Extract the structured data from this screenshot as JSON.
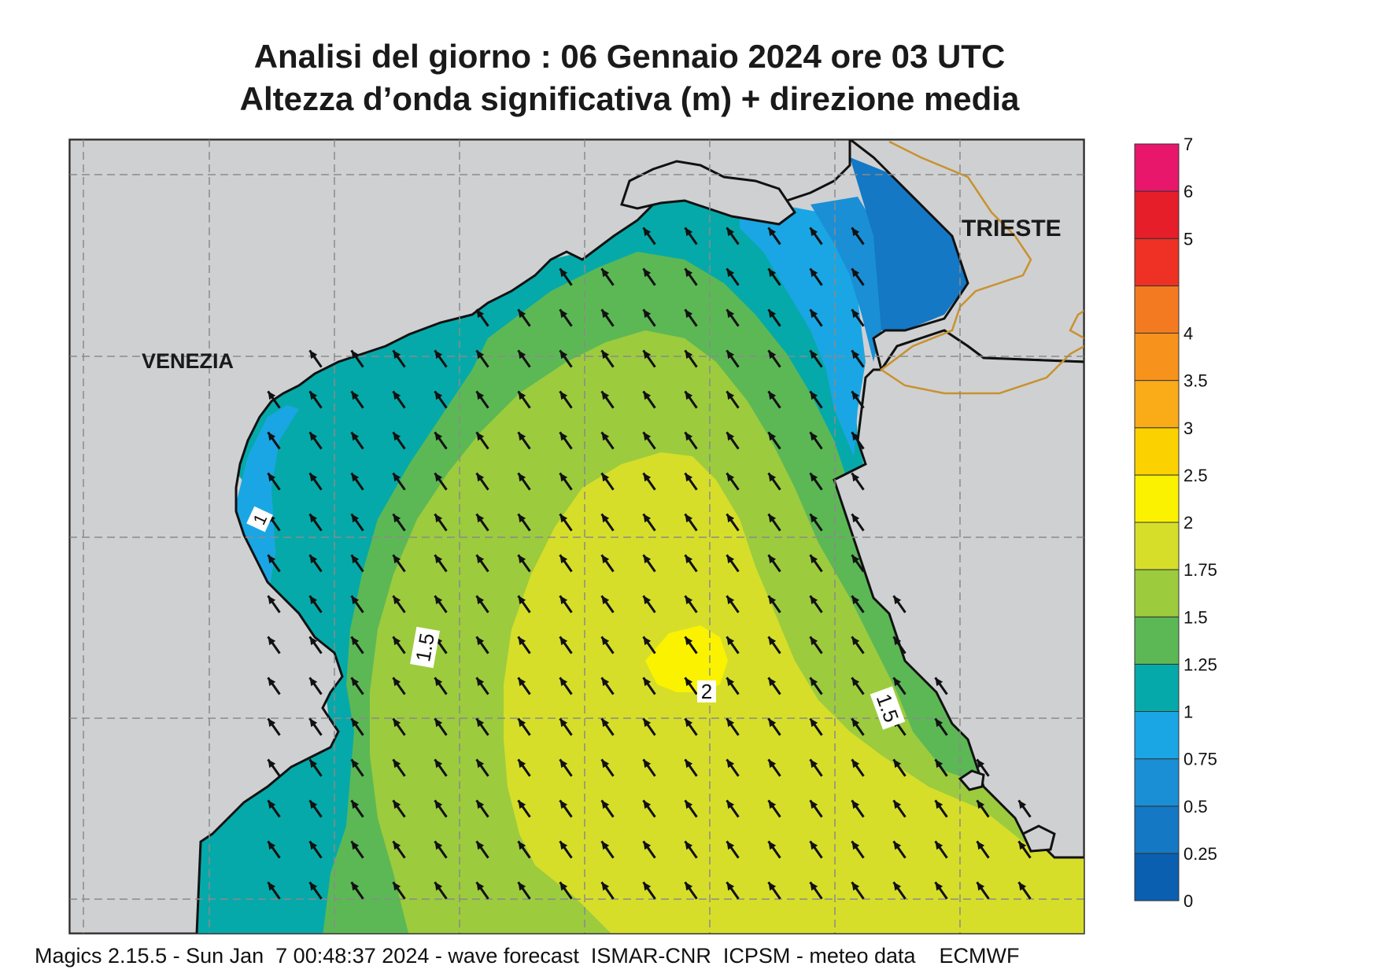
{
  "header": {
    "title_line1": "Analisi del giorno :  06  Gennaio  2024   ore 03 UTC",
    "title_line2": "Altezza d’onda significativa (m) + direzione media"
  },
  "places": {
    "venezia": "VENEZIA",
    "trieste": "TRIESTE"
  },
  "contour_labels": {
    "west_1": "1",
    "west_1_5": "1.5",
    "center_2": "2",
    "east_1_5": "1.5"
  },
  "colorbar": {
    "ticks": [
      "0",
      "0.25",
      "0.5",
      "0.75",
      "1",
      "1.25",
      "1.5",
      "1.75",
      "2",
      "2.5",
      "3",
      "3.5",
      "4",
      "4.5",
      "5",
      "6",
      "7"
    ],
    "tick_labels_shown": [
      "0",
      "0.25",
      "0.5",
      "0.75",
      "1",
      "1.25",
      "1.5",
      "1.75",
      "2",
      "2.5",
      "3",
      "3.5",
      "4",
      "5",
      "6",
      "7"
    ],
    "colors": [
      "#0b5fb0",
      "#1478c4",
      "#1a8fd6",
      "#1aa6e4",
      "#06a9a9",
      "#5cb855",
      "#9ccb3e",
      "#d6de2a",
      "#fbf200",
      "#fbd200",
      "#f9ab18",
      "#f7921c",
      "#f47a21",
      "#ee3124",
      "#e61e2a",
      "#e8176b"
    ]
  },
  "colors": {
    "land": "#cfd0d2",
    "coast": "#111111",
    "border": "#c8922e",
    "grid": "#8a8a8a"
  },
  "footer": {
    "text": "Magics 2.15.5 - Sun Jan  7 00:48:37 2024 - wave forecast  ISMAR-CNR  ICPSM - meteo data    ECMWF"
  }
}
